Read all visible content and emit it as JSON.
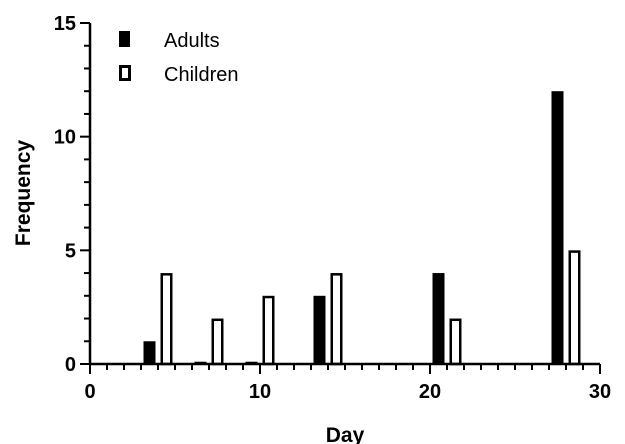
{
  "chart_data": {
    "type": "bar",
    "xlabel": "Day",
    "ylabel": "Frequency",
    "xlim": [
      0,
      30
    ],
    "ylim": [
      0,
      15
    ],
    "x_ticks": [
      0,
      10,
      20,
      30
    ],
    "y_ticks": [
      0,
      5,
      10,
      15
    ],
    "x_minor_step": 1,
    "y_minor_step": 1,
    "grid": false,
    "legend_position": "top-left",
    "series": [
      {
        "name": "Adults",
        "color": "#000000",
        "fill": "solid",
        "x": [
          3.5,
          6.5,
          9.5,
          13.5,
          20.5,
          27.5
        ],
        "values": [
          1,
          0.1,
          0.1,
          3,
          4,
          12
        ]
      },
      {
        "name": "Children",
        "color": "#000000",
        "fill": "hollow",
        "x": [
          4.5,
          7.5,
          10.5,
          14.5,
          21.5,
          28.5
        ],
        "values": [
          4,
          2,
          3,
          4,
          2,
          5
        ]
      }
    ]
  }
}
